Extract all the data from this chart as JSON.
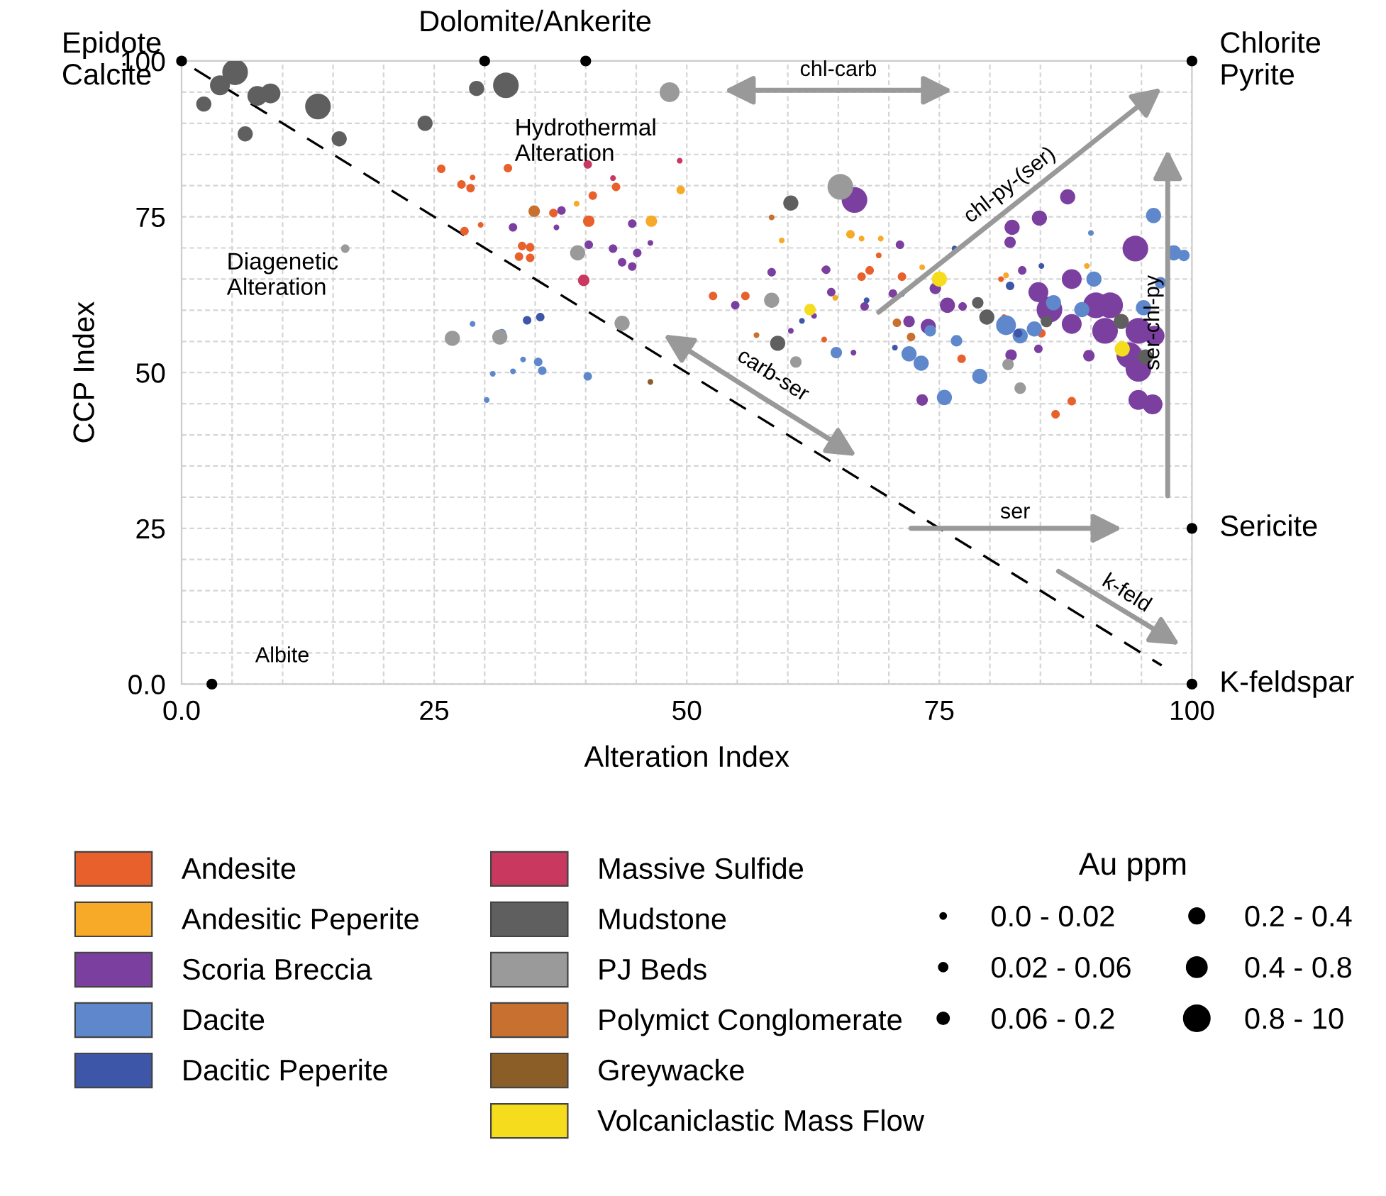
{
  "chart_data": {
    "type": "bubble",
    "xlabel": "Alteration Index",
    "ylabel": "CCP Index",
    "xlim": [
      0,
      100
    ],
    "ylim": [
      0,
      100
    ],
    "xticks": [
      {
        "value": 0,
        "label": "0.0"
      },
      {
        "value": 5,
        "label": null
      },
      {
        "value": 10,
        "label": null
      },
      {
        "value": 15,
        "label": null
      },
      {
        "value": 20,
        "label": null
      },
      25,
      {
        "value": 30,
        "label": null
      },
      {
        "value": 35,
        "label": null
      },
      {
        "value": 40,
        "label": null
      },
      {
        "value": 45,
        "label": null
      },
      50,
      {
        "value": 55,
        "label": null
      },
      {
        "value": 60,
        "label": null
      },
      {
        "value": 65,
        "label": null
      },
      {
        "value": 70,
        "label": null
      },
      75,
      {
        "value": 80,
        "label": null
      },
      {
        "value": 85,
        "label": null
      },
      {
        "value": 90,
        "label": null
      },
      {
        "value": 95,
        "label": null
      },
      100
    ],
    "yticks": [
      {
        "value": 0,
        "label": "0.0"
      },
      {
        "value": 5,
        "label": null
      },
      {
        "value": 10,
        "label": null
      },
      {
        "value": 15,
        "label": null
      },
      {
        "value": 20,
        "label": null
      },
      25,
      {
        "value": 30,
        "label": null
      },
      {
        "value": 35,
        "label": null
      },
      {
        "value": 40,
        "label": null
      },
      {
        "value": 45,
        "label": null
      },
      50,
      {
        "value": 55,
        "label": null
      },
      {
        "value": 60,
        "label": null
      },
      {
        "value": 65,
        "label": null
      },
      {
        "value": 70,
        "label": null
      },
      75,
      {
        "value": 80,
        "label": null
      },
      {
        "value": 85,
        "label": null
      },
      {
        "value": 90,
        "label": null
      },
      {
        "value": 95,
        "label": null
      },
      100
    ],
    "grid": true,
    "legend": "bottom",
    "legend_title": "Au ppm",
    "marker": "circle",
    "size_legend": [
      {
        "value": 0.05,
        "label": "0.0 - 0.02"
      },
      {
        "value": 0.11,
        "label": "0.02 - 0.06"
      },
      {
        "value": 0.2,
        "label": "0.06 - 0.2"
      },
      {
        "value": 0.35,
        "label": "0.2 - 0.4"
      },
      {
        "value": 0.6,
        "label": "0.4 - 0.8"
      },
      {
        "value": 1,
        "label": "0.8 - 10"
      }
    ],
    "annotations": [
      {
        "text": "Epidote\nCalcite",
        "x": 0,
        "y": 100
      },
      "Dolomite/Ankerite",
      {
        "text": "Chlorite\nPyrite",
        "x": 100,
        "y": 100
      },
      {
        "text": "Sericite",
        "x": 100,
        "y": 25
      },
      {
        "text": "K-feldspar",
        "x": 100,
        "y": 0
      },
      {
        "text": "Albite",
        "x": 3,
        "y": 0
      },
      "Hydrothermal\nAlteration",
      "Diagenetic\nAlteration",
      "chl-carb",
      "chl-py-(ser)",
      "carb-ser",
      "ser",
      "ser-chl-py",
      "k-feld"
    ],
    "series": [
      {
        "name": "Andesite",
        "color": "#e8602c",
        "x": [
          25.7,
          32.3,
          27.7,
          28.8,
          28.6,
          29.6,
          28.0,
          33.7,
          34.5,
          33.4,
          34.5,
          40.7,
          43.0,
          40.3,
          36.8,
          52.6,
          55.8,
          63.6,
          67.3,
          68.1,
          71.3,
          77.2,
          85.1,
          81.4,
          86.5,
          88.1,
          69.0,
          63.6,
          81.1
        ],
        "values": [
          82.7,
          82.8,
          80.2,
          81.3,
          79.6,
          73.7,
          72.7,
          70.3,
          70.1,
          68.6,
          68.4,
          78.4,
          79.8,
          74.3,
          75.6,
          62.3,
          62.3,
          55.3,
          65.4,
          66.4,
          65.4,
          52.2,
          56.3,
          58.9,
          43.3,
          45.4,
          68.8,
          66.5,
          65.0
        ],
        "sizes": [
          0.11,
          0.11,
          0.11,
          0.05,
          0.11,
          0.05,
          0.11,
          0.11,
          0.11,
          0.11,
          0.11,
          0.11,
          0.11,
          0.2,
          0.11,
          0.11,
          0.11,
          0.05,
          0.11,
          0.11,
          0.11,
          0.11,
          0.11,
          0.05,
          0.11,
          0.11,
          0.05,
          0.05,
          0.05
        ]
      },
      {
        "name": "Andesitic Peperite",
        "color": "#f7a928",
        "x": [
          39.1,
          46.5,
          49.4,
          59.4,
          66.2,
          67.3,
          69.2,
          64.7,
          73.3,
          89.6,
          81.6
        ],
        "values": [
          77.1,
          74.3,
          79.3,
          71.2,
          72.2,
          71.5,
          71.5,
          62.0,
          66.9,
          67.1,
          65.6
        ],
        "sizes": [
          0.05,
          0.2,
          0.11,
          0.05,
          0.11,
          0.05,
          0.05,
          0.05,
          0.05,
          0.05,
          0.05
        ]
      },
      {
        "name": "Scoria Breccia",
        "color": "#7b3fa0",
        "x": [
          32.8,
          37.6,
          37.1,
          40.3,
          42.7,
          44.6,
          43.6,
          44.6,
          45.1,
          46.4,
          66.6,
          58.4,
          54.8,
          63.8,
          64.3,
          67.6,
          71.1,
          62.6,
          60.3,
          66.5,
          70.4,
          72.0,
          73.9,
          75.8,
          74.6,
          77.3,
          73.3,
          82.1,
          84.8,
          82.2,
          84.9,
          87.7,
          82.0,
          83.2,
          88.1,
          84.8,
          85.9,
          88.1,
          90.5,
          91.9,
          91.4,
          94.4,
          94.7,
          94.7,
          93.8,
          96.3,
          94.7,
          96.1,
          89.8
        ],
        "values": [
          73.3,
          76.0,
          73.3,
          70.5,
          69.9,
          73.9,
          67.7,
          67.0,
          69.2,
          70.8,
          77.7,
          66.1,
          60.8,
          66.5,
          62.9,
          60.6,
          70.5,
          59.1,
          56.7,
          53.2,
          62.7,
          58.2,
          57.4,
          60.8,
          63.5,
          60.6,
          45.6,
          52.8,
          53.8,
          73.3,
          74.8,
          78.2,
          70.9,
          66.4,
          65.0,
          62.9,
          60.1,
          57.8,
          60.8,
          60.8,
          56.7,
          69.9,
          56.7,
          50.6,
          52.8,
          55.9,
          45.6,
          44.9,
          52.7
        ],
        "sizes": [
          0.11,
          0.11,
          0.05,
          0.11,
          0.11,
          0.11,
          0.11,
          0.11,
          0.11,
          0.05,
          1,
          0.11,
          0.11,
          0.11,
          0.11,
          0.11,
          0.11,
          0.05,
          0.05,
          0.05,
          0.11,
          0.2,
          0.35,
          0.35,
          0.2,
          0.11,
          0.2,
          0.2,
          0.11,
          0.35,
          0.35,
          0.35,
          0.2,
          0.11,
          0.6,
          0.6,
          1,
          0.6,
          1,
          1,
          1,
          1,
          1,
          1,
          1,
          0.6,
          0.6,
          0.6,
          0.2
        ]
      },
      {
        "name": "Dacite",
        "color": "#5f87cc",
        "x": [
          28.8,
          31.7,
          33.8,
          35.3,
          35.7,
          32.8,
          30.8,
          40.2,
          30.2,
          96.2,
          90.0,
          98.2,
          99.2,
          96.9,
          72.0,
          73.2,
          75.5,
          79.0,
          64.8,
          81.6,
          83.0,
          84.4,
          86.3,
          89.1,
          90.3,
          95.2,
          74.1,
          76.7
        ],
        "values": [
          57.8,
          56.3,
          52.1,
          51.7,
          50.3,
          50.2,
          49.8,
          49.4,
          45.6,
          75.2,
          72.4,
          69.2,
          68.8,
          64.4,
          53.0,
          51.5,
          46.0,
          49.4,
          53.2,
          57.6,
          55.9,
          57.0,
          61.2,
          60.1,
          65.0,
          60.4,
          56.7,
          55.1
        ],
        "sizes": [
          0.05,
          0.11,
          0.05,
          0.11,
          0.11,
          0.05,
          0.05,
          0.11,
          0.05,
          0.35,
          0.05,
          0.35,
          0.2,
          0.2,
          0.35,
          0.35,
          0.35,
          0.35,
          0.2,
          0.6,
          0.35,
          0.35,
          0.35,
          0.35,
          0.35,
          0.35,
          0.2,
          0.2
        ]
      },
      {
        "name": "Dacitic Peperite",
        "color": "#3d56a8",
        "x": [
          34.2,
          35.5,
          76.5,
          67.8,
          61.4,
          70.6,
          82.8,
          85.1,
          82.0,
          71.3
        ],
        "values": [
          58.4,
          58.9,
          69.9,
          61.6,
          58.3,
          54.0,
          56.3,
          67.1,
          63.9,
          62.6
        ],
        "sizes": [
          0.11,
          0.11,
          0.05,
          0.05,
          0.05,
          0.05,
          0.11,
          0.05,
          0.11,
          0.05
        ]
      },
      {
        "name": "Massive Sulfide",
        "color": "#c8385f",
        "x": [
          39.8,
          40.2,
          42.7,
          49.3
        ],
        "values": [
          64.8,
          83.4,
          81.2,
          84.0
        ],
        "sizes": [
          0.2,
          0.11,
          0.05,
          0.05
        ]
      },
      {
        "name": "Mudstone",
        "color": "#5f5f5f",
        "x": [
          2.2,
          3.8,
          5.3,
          6.3,
          7.5,
          8.8,
          13.5,
          15.6,
          24.1,
          29.2,
          32.1,
          60.3,
          59.0,
          79.7,
          78.8,
          85.6,
          93.0,
          95.4
        ],
        "values": [
          93.1,
          96.1,
          98.2,
          88.3,
          94.4,
          94.8,
          92.7,
          87.5,
          90.0,
          95.6,
          96.1,
          77.2,
          54.7,
          58.9,
          61.2,
          58.2,
          58.2,
          52.5
        ],
        "sizes": [
          0.35,
          0.6,
          1,
          0.35,
          0.6,
          0.6,
          1,
          0.35,
          0.35,
          0.35,
          1,
          0.35,
          0.35,
          0.35,
          0.2,
          0.2,
          0.35,
          0.35
        ]
      },
      {
        "name": "PJ Beds",
        "color": "#9a9a9a",
        "x": [
          48.3,
          16.2,
          39.2,
          26.8,
          31.5,
          43.6,
          65.2,
          58.4,
          60.8,
          81.8,
          83.0
        ],
        "values": [
          95.0,
          69.9,
          69.2,
          55.5,
          55.7,
          57.9,
          79.8,
          61.6,
          51.7,
          51.3,
          47.5
        ],
        "sizes": [
          0.6,
          0.11,
          0.35,
          0.35,
          0.35,
          0.35,
          1,
          0.35,
          0.2,
          0.2,
          0.2
        ]
      },
      {
        "name": "Polymict Conglomerate",
        "color": "#c8702f",
        "x": [
          34.9,
          58.4,
          56.9,
          70.8,
          72.2
        ],
        "values": [
          75.9,
          74.9,
          56.0,
          58.0,
          55.7
        ],
        "sizes": [
          0.2,
          0.05,
          0.05,
          0.11,
          0.11
        ]
      },
      {
        "name": "Greywacke",
        "color": "#8b5d27",
        "x": [
          46.4
        ],
        "values": [
          48.5
        ],
        "sizes": [
          0.05
        ]
      },
      {
        "name": "Volcaniclastic Mass Flow",
        "color": "#f5dc1c",
        "x": [
          62.2,
          75.0,
          93.1
        ],
        "values": [
          60.1,
          65.0,
          53.8
        ],
        "sizes": [
          0.2,
          0.35,
          0.35
        ]
      },
      {
        "type": "line",
        "color": "#000000",
        "line_style": "dashed",
        "marker": "none",
        "x": [
          0,
          97
        ],
        "values": [
          100,
          3
        ]
      },
      {
        "type": "scatter",
        "color": "#000000",
        "marker": "circle",
        "x": [
          0,
          30,
          40,
          100,
          100,
          100,
          3
        ],
        "values": [
          100,
          100,
          100,
          100,
          25,
          0,
          0
        ]
      }
    ]
  }
}
